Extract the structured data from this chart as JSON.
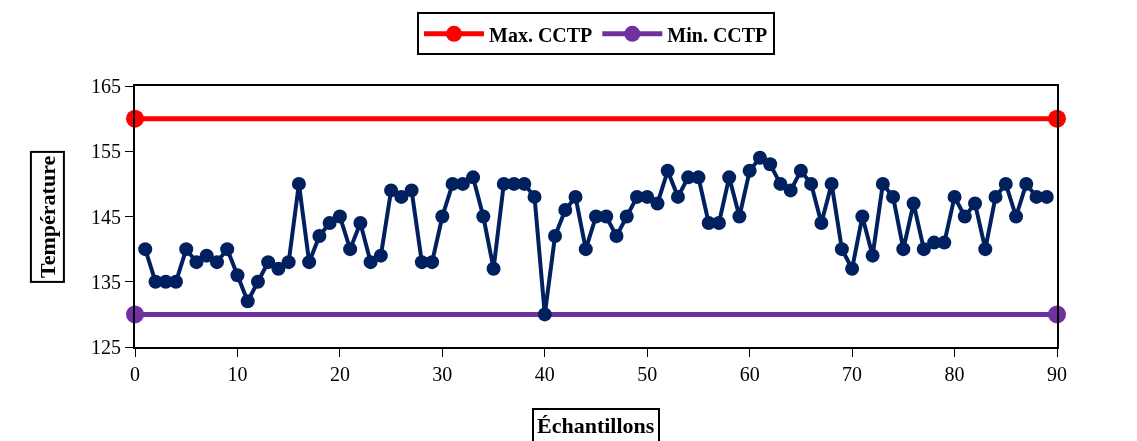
{
  "chart_data": {
    "type": "line",
    "xlabel": "Échantillons",
    "ylabel": "Température",
    "xlim": [
      0,
      90
    ],
    "xticks": [
      0,
      10,
      20,
      30,
      40,
      50,
      60,
      70,
      80,
      90
    ],
    "ylim": [
      125,
      165
    ],
    "yticks": [
      125,
      135,
      145,
      155,
      165
    ],
    "legend": "top",
    "marker": "circle",
    "line_style": "solid",
    "series": [
      {
        "name": "Max. CCTP",
        "color": "#ff0000",
        "x": [
          0,
          90
        ],
        "values": [
          160,
          160
        ]
      },
      {
        "name": "Min. CCTP",
        "color": "#7030a0",
        "x": [
          0,
          90
        ],
        "values": [
          130,
          130
        ]
      },
      {
        "color": "#002060",
        "x": [
          1,
          2,
          3,
          4,
          5,
          6,
          7,
          8,
          9,
          10,
          11,
          12,
          13,
          14,
          15,
          16,
          17,
          18,
          19,
          20,
          21,
          22,
          23,
          24,
          25,
          26,
          27,
          28,
          29,
          30,
          31,
          32,
          33,
          34,
          35,
          36,
          37,
          38,
          39,
          40,
          41,
          42,
          43,
          44,
          45,
          46,
          47,
          48,
          49,
          50,
          51,
          52,
          53,
          54,
          55,
          56,
          57,
          58,
          59,
          60,
          61,
          62,
          63,
          64,
          65,
          66,
          67,
          68,
          69,
          70,
          71,
          72,
          73,
          74,
          75,
          76,
          77,
          78,
          79,
          80,
          81,
          82,
          83,
          84,
          85,
          86,
          87,
          88,
          89
        ],
        "values": [
          140,
          135,
          135,
          135,
          140,
          138,
          139,
          138,
          140,
          136,
          132,
          135,
          138,
          137,
          138,
          150,
          138,
          142,
          144,
          145,
          140,
          144,
          138,
          139,
          149,
          148,
          149,
          138,
          138,
          145,
          150,
          150,
          151,
          145,
          137,
          150,
          150,
          150,
          148,
          130,
          142,
          146,
          148,
          140,
          145,
          145,
          142,
          145,
          148,
          148,
          147,
          152,
          148,
          151,
          151,
          144,
          144,
          151,
          145,
          152,
          154,
          153,
          150,
          149,
          152,
          150,
          144,
          150,
          140,
          137,
          145,
          139,
          150,
          148,
          140,
          147,
          140,
          141,
          141,
          148,
          145,
          147,
          140,
          148,
          150,
          145,
          150,
          148,
          148
        ]
      }
    ]
  }
}
